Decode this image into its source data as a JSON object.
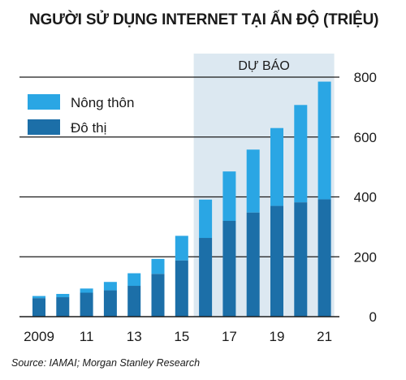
{
  "chart_data": {
    "type": "bar",
    "stacked": true,
    "title": "NGƯỜI SỬ DỤNG INTERNET TẠI ẤN ĐỘ (TRIỆU)",
    "forecast_label": "DỰ BÁO",
    "forecast_start_year": 2016,
    "x": [
      2009,
      2010,
      2011,
      2012,
      2013,
      2014,
      2015,
      2016,
      2017,
      2018,
      2019,
      2020,
      2021
    ],
    "x_tick_labels": [
      "2009",
      "11",
      "13",
      "15",
      "17",
      "19",
      "21"
    ],
    "x_tick_values": [
      2009,
      2011,
      2013,
      2015,
      2017,
      2019,
      2021
    ],
    "series": [
      {
        "name": "Đô thị",
        "color": "#1c6fa8",
        "values": [
          62,
          65,
          80,
          88,
          103,
          143,
          188,
          263,
          320,
          348,
          370,
          382,
          392
        ]
      },
      {
        "name": "Nông thôn",
        "color": "#2aa6e4",
        "values": [
          7,
          11,
          14,
          28,
          42,
          50,
          82,
          128,
          165,
          210,
          260,
          325,
          393
        ]
      }
    ],
    "y_ticks": [
      0,
      200,
      400,
      600,
      800
    ],
    "ylim": [
      0,
      800
    ],
    "grid": true,
    "legend": "top-left",
    "forecast_shade_color": "#dce8f1"
  },
  "source": "Source: IAMAI; Morgan Stanley Research"
}
